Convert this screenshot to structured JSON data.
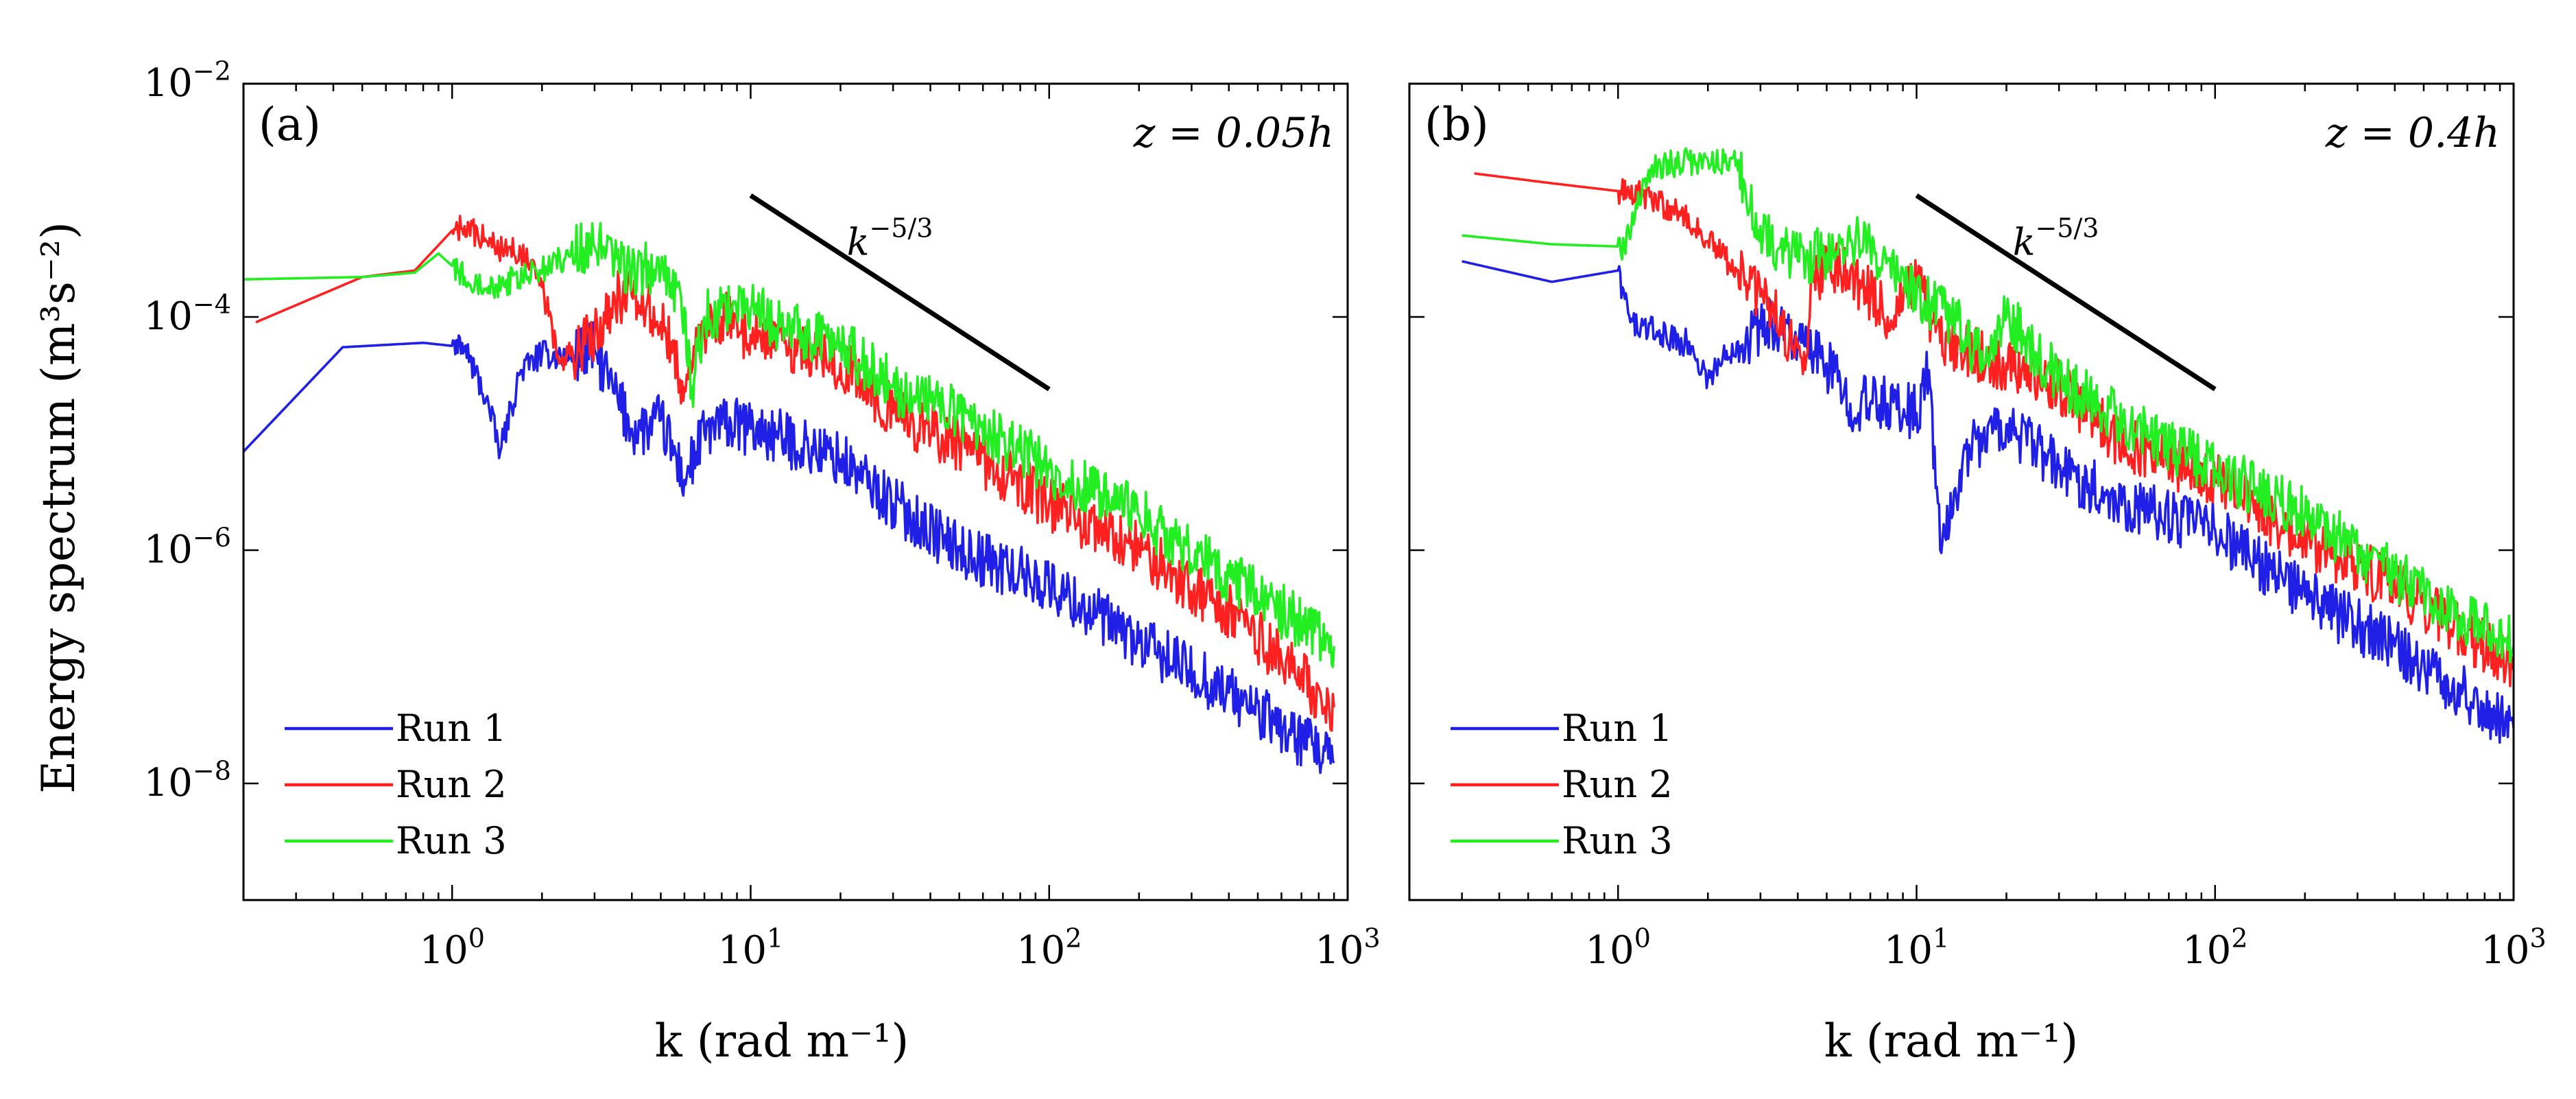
{
  "figure": {
    "ylabel": "Energy spectrum (m³s⁻²)",
    "xlabel": "k (rad m⁻¹)"
  },
  "chart_data": [
    {
      "type": "line",
      "panel_label": "(a)",
      "height_annotation": "z = 0.05h",
      "slope_label": "k^{-5/3}",
      "xlabel": "k (rad m⁻¹)",
      "ylabel": "Energy spectrum (m³s⁻²)",
      "xscale": "log",
      "yscale": "log",
      "xlim": [
        0.2,
        1000
      ],
      "ylim": [
        1e-09,
        0.01
      ],
      "x_ticks": [
        1,
        10,
        100,
        1000
      ],
      "x_tick_labels": [
        "10^0",
        "10^1",
        "10^2",
        "10^3"
      ],
      "y_ticks": [
        1e-08,
        1e-06,
        0.0001,
        0.01
      ],
      "y_tick_labels": [
        "10^-8",
        "10^-6",
        "10^-4",
        "10^-2"
      ],
      "legend_position": "bottom-left",
      "reference_line": {
        "label": "k^{-5/3}",
        "x": [
          10,
          100
        ],
        "y": [
          0.0011,
          2.4e-05
        ],
        "color": "#000000"
      },
      "series": [
        {
          "name": "Run 1",
          "color": "#1f1fe6",
          "x": [
            0.2,
            0.43,
            0.8,
            1.1,
            1.3,
            1.45,
            1.7,
            2.0,
            2.5,
            3.0,
            3.5,
            4.0,
            4.5,
            5.0,
            6.0,
            7.0,
            8.0,
            10.0,
            13.0,
            20.0,
            30.0,
            50.0,
            100.0,
            200.0,
            400.0,
            900.0
          ],
          "y": [
            7e-06,
            5.5e-05,
            6e-05,
            5.5e-05,
            2e-05,
            7e-06,
            3.5e-05,
            4.8e-05,
            4.5e-05,
            5.3e-05,
            2.2e-05,
            1.1e-05,
            1.1e-05,
            1.3e-05,
            4e-06,
            1e-05,
            1.2e-05,
            1.1e-05,
            9e-06,
            6e-06,
            2.5e-06,
            1e-06,
            5e-07,
            1.6e-07,
            6e-08,
            1.5e-08
          ]
        },
        {
          "name": "Run 2",
          "color": "#ff2020",
          "x": [
            0.22,
            0.5,
            0.75,
            1.0,
            1.1,
            1.3,
            1.5,
            1.7,
            2.0,
            2.3,
            3.0,
            3.5,
            4.0,
            5.0,
            6.0,
            7.0,
            8.0,
            10.0,
            13.0,
            20.0,
            30.0,
            50.0,
            100.0,
            200.0,
            400.0,
            900.0
          ],
          "y": [
            9e-05,
            0.00022,
            0.00025,
            0.00055,
            0.0006,
            0.00045,
            0.00038,
            0.00036,
            0.00018,
            4e-05,
            7e-05,
            0.00015,
            0.00015,
            9e-05,
            2.5e-05,
            8e-05,
            0.0001,
            7e-05,
            6e-05,
            4e-05,
            1.5e-05,
            8e-06,
            2.5e-06,
            1e-06,
            3e-07,
            4.5e-08
          ]
        },
        {
          "name": "Run 3",
          "color": "#22ee22",
          "x": [
            0.2,
            0.5,
            0.75,
            0.9,
            1.1,
            1.4,
            1.8,
            2.5,
            3.0,
            3.5,
            4.0,
            5.0,
            6.0,
            6.3,
            7.0,
            8.0,
            10.0,
            13.0,
            20.0,
            30.0,
            40.0,
            50.0,
            100.0,
            200.0,
            400.0,
            900.0
          ],
          "y": [
            0.00021,
            0.00022,
            0.00024,
            0.00035,
            0.00022,
            0.00019,
            0.00022,
            0.00035,
            0.0004,
            0.0003,
            0.00025,
            0.00025,
            0.00012,
            2e-05,
            0.0001,
            0.00012,
            0.00012,
            8e-05,
            6e-05,
            2.5e-05,
            2e-05,
            1.5e-05,
            5e-06,
            2e-06,
            6e-07,
            1.5e-07
          ]
        }
      ]
    },
    {
      "type": "line",
      "panel_label": "(b)",
      "height_annotation": "z = 0.4h",
      "slope_label": "k^{-5/3}",
      "xlabel": "k (rad m⁻¹)",
      "ylabel": "Energy spectrum (m³s⁻²)",
      "xscale": "log",
      "yscale": "log",
      "xlim": [
        0.2,
        1000
      ],
      "ylim": [
        1e-09,
        0.01
      ],
      "x_ticks": [
        1,
        10,
        100,
        1000
      ],
      "x_tick_labels": [
        "10^0",
        "10^1",
        "10^2",
        "10^3"
      ],
      "y_ticks": [
        1e-08,
        1e-06,
        0.0001,
        0.01
      ],
      "y_tick_labels": [],
      "legend_position": "bottom-left",
      "reference_line": {
        "label": "k^{-5/3}",
        "x": [
          10,
          100
        ],
        "y": [
          0.0011,
          2.4e-05
        ],
        "color": "#000000"
      },
      "series": [
        {
          "name": "Run 1",
          "color": "#1f1fe6",
          "x": [
            0.3,
            0.6,
            1.0,
            1.1,
            1.4,
            1.7,
            2.0,
            2.5,
            3.0,
            3.5,
            4.0,
            5.0,
            6.0,
            8.0,
            10.0,
            11.0,
            12.0,
            15.0,
            20.0,
            30.0,
            50.0,
            100.0,
            200.0,
            400.0,
            1000.0
          ],
          "y": [
            0.0003,
            0.0002,
            0.00025,
            9e-05,
            7e-05,
            6e-05,
            3e-05,
            6e-05,
            8e-05,
            9e-05,
            6e-05,
            4e-05,
            1.8e-05,
            1.8e-05,
            1.5e-05,
            3.5e-05,
            1e-06,
            8e-06,
            1.2e-05,
            5e-06,
            2.5e-06,
            1.5e-06,
            4e-07,
            1.5e-07,
            3e-08
          ]
        },
        {
          "name": "Run 2",
          "color": "#ff2020",
          "x": [
            0.33,
            0.6,
            1.0,
            1.2,
            1.6,
            2.0,
            2.5,
            3.0,
            3.5,
            3.9,
            4.2,
            4.5,
            5.0,
            6.0,
            7.0,
            8.0,
            10.0,
            12.0,
            15.0,
            20.0,
            30.0,
            50.0,
            100.0,
            200.0,
            400.0,
            1000.0
          ],
          "y": [
            0.0017,
            0.0014,
            0.0012,
            0.0011,
            0.0008,
            0.00045,
            0.00025,
            0.00015,
            0.0001,
            4.5e-05,
            5e-05,
            0.0002,
            0.0003,
            0.00025,
            0.00015,
            0.0001,
            0.0002,
            6e-05,
            5e-05,
            4e-05,
            2.5e-05,
            8e-06,
            4e-06,
            1.2e-06,
            5e-07,
            1e-07
          ]
        },
        {
          "name": "Run 3",
          "color": "#22ee22",
          "x": [
            0.3,
            0.6,
            1.05,
            1.3,
            1.6,
            2.0,
            2.5,
            2.7,
            3.0,
            3.5,
            4.0,
            5.0,
            6.0,
            8.0,
            10.0,
            13.0,
            17.0,
            20.0,
            25.0,
            30.0,
            50.0,
            100.0,
            200.0,
            400.0,
            1000.0
          ],
          "y": [
            0.0005,
            0.00042,
            0.0004,
            0.002,
            0.0021,
            0.0022,
            0.0022,
            0.0009,
            0.0006,
            0.0004,
            0.0003,
            0.00035,
            0.00045,
            0.00032,
            0.00015,
            0.0001,
            4e-05,
            0.0001,
            5e-05,
            3e-05,
            1.2e-05,
            5e-06,
            2e-06,
            6e-07,
            1.5e-07
          ]
        }
      ]
    }
  ]
}
